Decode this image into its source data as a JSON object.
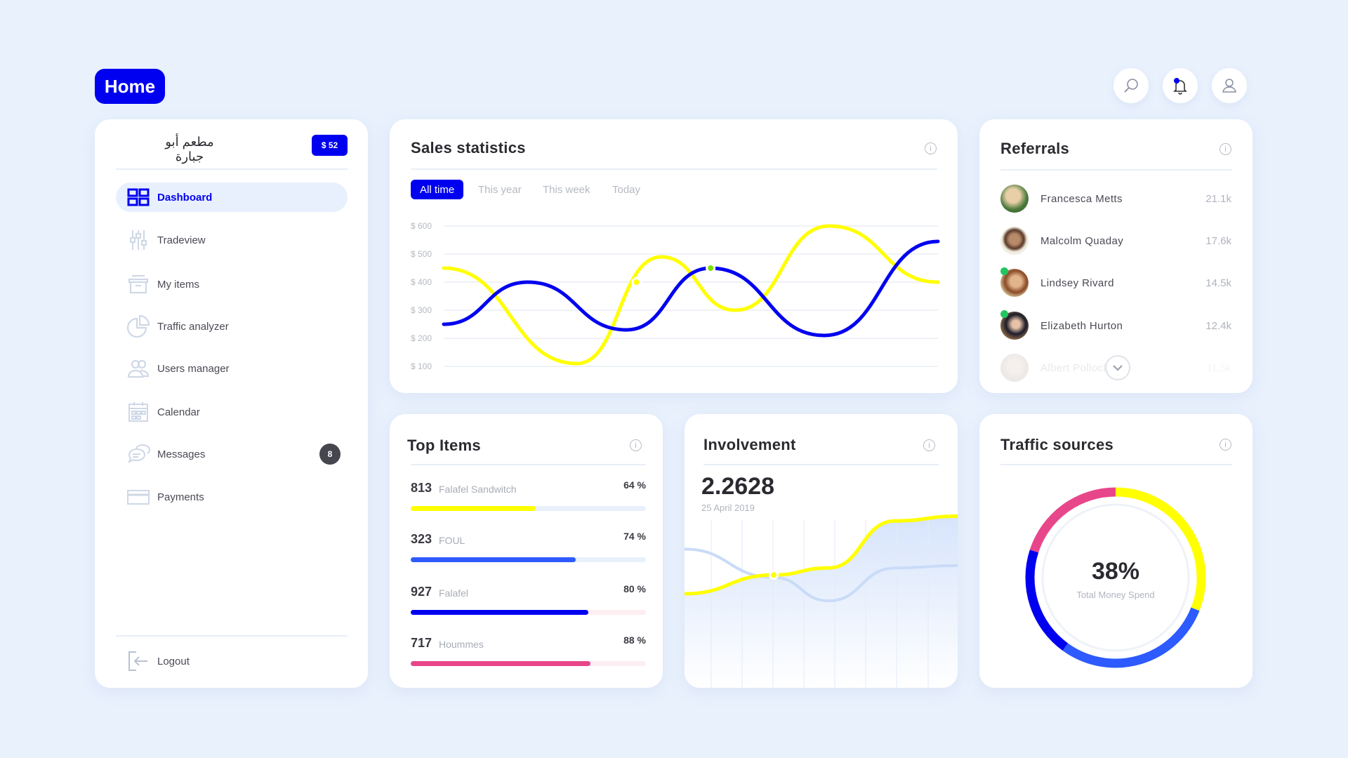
{
  "header": {
    "home_label": "Home",
    "icons": [
      "search-icon",
      "bell-icon",
      "user-icon"
    ]
  },
  "sidebar": {
    "restaurant_name": "مطعم أبو جبارة",
    "balance": "$ 52",
    "items": [
      {
        "label": "Dashboard",
        "icon": "dashboard-icon",
        "active": true
      },
      {
        "label": "Tradeview",
        "icon": "sliders-icon"
      },
      {
        "label": "My items",
        "icon": "archive-icon"
      },
      {
        "label": "Traffic analyzer",
        "icon": "pie-chart-icon"
      },
      {
        "label": "Users manager",
        "icon": "users-icon"
      },
      {
        "label": "Calendar",
        "icon": "calendar-icon"
      },
      {
        "label": "Messages",
        "icon": "chat-icon",
        "badge": "8"
      },
      {
        "label": "Payments",
        "icon": "credit-card-icon"
      }
    ],
    "logout": "Logout"
  },
  "sales": {
    "title": "Sales statistics",
    "tabs": [
      "All time",
      "This year",
      "This week",
      "Today"
    ],
    "active_tab": "All time"
  },
  "chart_data": {
    "type": "line",
    "title": "Sales statistics",
    "ylim": [
      100,
      600
    ],
    "yticks": [
      "$ 600",
      "$ 500",
      "$ 400",
      "$ 300",
      "$ 200",
      "$ 100"
    ],
    "ytick_values": [
      600,
      500,
      400,
      300,
      200,
      100
    ],
    "xlim": [
      0,
      100
    ],
    "series": [
      {
        "name": "series-blue",
        "color": "#0000f0",
        "points": [
          [
            0,
            250
          ],
          [
            17,
            400
          ],
          [
            37,
            230
          ],
          [
            54,
            450
          ],
          [
            77,
            210
          ],
          [
            100,
            545
          ]
        ],
        "marker": [
          54,
          450
        ]
      },
      {
        "name": "series-yellow",
        "color": "#ffff00",
        "points": [
          [
            0,
            450
          ],
          [
            27,
            110
          ],
          [
            44,
            490
          ],
          [
            59,
            300
          ],
          [
            78,
            600
          ],
          [
            100,
            400
          ]
        ],
        "marker": [
          39,
          400
        ]
      }
    ]
  },
  "referrals": {
    "title": "Referrals",
    "people": [
      {
        "name": "Francesca Metts",
        "value": "21.1k",
        "online": false
      },
      {
        "name": "Malcolm Quaday",
        "value": "17.6k",
        "online": false
      },
      {
        "name": "Lindsey Rivard",
        "value": "14.5k",
        "online": true
      },
      {
        "name": "Elizabeth Hurton",
        "value": "12.4k",
        "online": true
      },
      {
        "name": "Albert Pollock",
        "value": "11.5k",
        "online": false
      }
    ]
  },
  "top_items": {
    "title": "Top Items",
    "items": [
      {
        "count": "813",
        "name": "Falafel Sandwitch",
        "percent": "64 %",
        "fill": 0.53,
        "color": "#ffff00",
        "track": "#e9f0fb"
      },
      {
        "count": "323",
        "name": "FOUL",
        "percent": "74 %",
        "fill": 0.7,
        "color": "#2d5bff",
        "track": "#e9f0fb"
      },
      {
        "count": "927",
        "name": "Falafel",
        "percent": "80 %",
        "fill": 0.755,
        "color": "#0000f0",
        "track": "#fdeef2"
      },
      {
        "count": "717",
        "name": "Hoummes",
        "percent": "88 %",
        "fill": 0.765,
        "color": "#e8468a",
        "track": "#fdeef2"
      }
    ]
  },
  "involvement": {
    "title": "Involvement",
    "value": "2.2628",
    "date": "25 April 2019",
    "series": [
      {
        "name": "yellow",
        "color": "#ffff00",
        "values": [
          37,
          45,
          48,
          68,
          70
        ]
      },
      {
        "name": "light-blue",
        "color": "#c9dbf7",
        "values": [
          56,
          44,
          34,
          48,
          49
        ]
      }
    ]
  },
  "traffic": {
    "title": "Traffic sources",
    "percent": "38%",
    "label": "Total Money Spend",
    "segments": [
      {
        "color": "#ffff00",
        "share": 0.31
      },
      {
        "color": "#2d5bff",
        "share": 0.29
      },
      {
        "color": "#0000f0",
        "share": 0.2
      },
      {
        "color": "#e8468a",
        "share": 0.2
      }
    ]
  }
}
